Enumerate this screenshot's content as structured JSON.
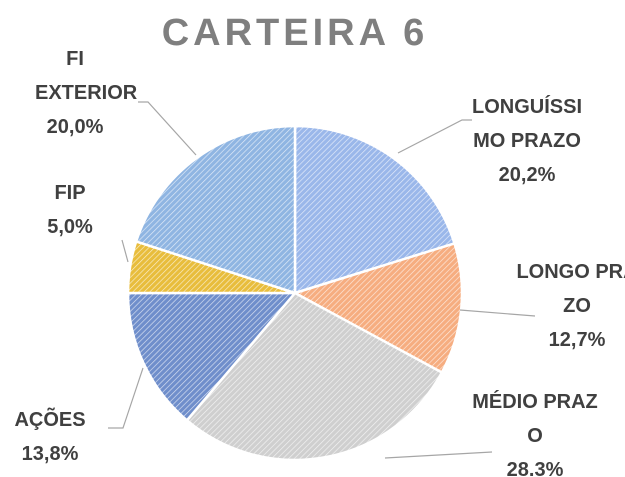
{
  "chart_data": {
    "type": "pie",
    "title": "CARTEIRA 6",
    "categories": [
      "LONGUÍSSIMO PRAZO",
      "LONGO PRAZO",
      "MÉDIO PRAZO",
      "AÇÕES",
      "FIP",
      "FI EXTERIOR"
    ],
    "values": [
      20.2,
      12.7,
      28.3,
      13.8,
      5.0,
      20.0
    ],
    "value_labels": [
      "20,2%",
      "12,7%",
      "28.3%",
      "13,8%",
      "5,0%",
      "20,0%"
    ],
    "colors": [
      "#9ab7ea",
      "#f6ad80",
      "#cfcfcf",
      "#6f8ecb",
      "#e8bd3c",
      "#8fb5e2"
    ]
  }
}
